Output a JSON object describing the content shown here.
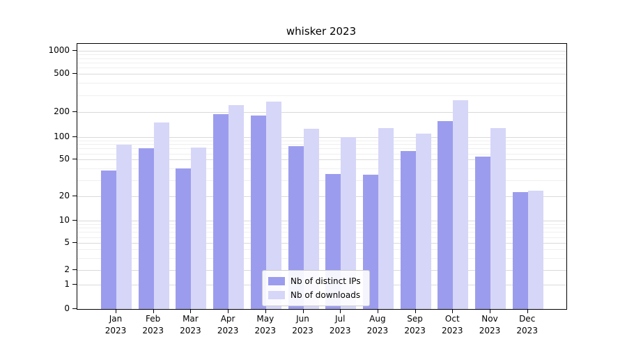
{
  "chart_data": {
    "type": "bar",
    "title": "whisker 2023",
    "categories": [
      "Jan 2023",
      "Feb 2023",
      "Mar 2023",
      "Apr 2023",
      "May 2023",
      "Jun 2023",
      "Jul 2023",
      "Aug 2023",
      "Sep 2023",
      "Oct 2023",
      "Nov 2023",
      "Dec 2023"
    ],
    "series": [
      {
        "name": "Nb of distinct IPs",
        "color": "#9c9cee",
        "values": [
          38,
          70,
          40,
          190,
          182,
          75,
          35,
          34,
          65,
          155,
          55,
          22
        ]
      },
      {
        "name": "Nb of downloads",
        "color": "#d6d6f8",
        "values": [
          78,
          150,
          72,
          235,
          255,
          125,
          100,
          128,
          110,
          265,
          128,
          23
        ]
      }
    ],
    "yscale": "symlog",
    "ylim": [
      0,
      1300
    ],
    "yticks": [
      {
        "v": 0,
        "label": "0"
      },
      {
        "v": 1,
        "label": "1"
      },
      {
        "v": 2,
        "label": "2"
      },
      {
        "v": 5,
        "label": "5"
      },
      {
        "v": 10,
        "label": "10"
      },
      {
        "v": 20,
        "label": "20"
      },
      {
        "v": 50,
        "label": "50"
      },
      {
        "v": 100,
        "label": "100"
      },
      {
        "v": 200,
        "label": "200"
      },
      {
        "v": 500,
        "label": "500"
      },
      {
        "v": 1000,
        "label": "1000"
      }
    ],
    "grid": true,
    "legend": {
      "position": "lower center",
      "entries": [
        "Nb of distinct IPs",
        "Nb of downloads"
      ]
    }
  },
  "colors": {
    "major_grid": "#d9d9d9",
    "minor_grid": "#efefef",
    "axis": "#000000",
    "background": "#ffffff"
  }
}
